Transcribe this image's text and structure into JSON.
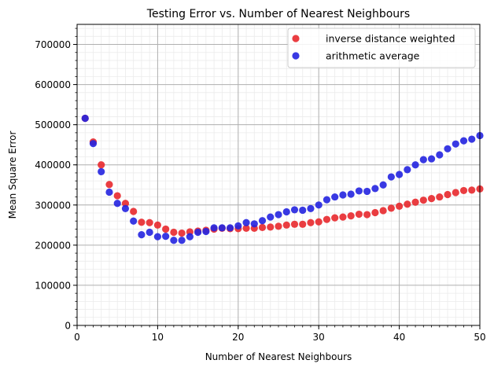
{
  "chart_data": {
    "type": "scatter",
    "title": "Testing Error vs. Number of Nearest Neighbours",
    "xlabel": "Number of Nearest Neighbours",
    "ylabel": "Mean Square Error",
    "xlim": [
      0,
      50
    ],
    "ylim": [
      0,
      750000
    ],
    "x_major_ticks": [
      0,
      10,
      20,
      30,
      40,
      50
    ],
    "y_major_ticks": [
      0,
      100000,
      200000,
      300000,
      400000,
      500000,
      600000,
      700000
    ],
    "x_tick_labels": [
      "0",
      "10",
      "20",
      "30",
      "40",
      "50"
    ],
    "y_tick_labels": [
      "0",
      "100000",
      "200000",
      "300000",
      "400000",
      "500000",
      "600000",
      "700000"
    ],
    "grid": "on (major and minor)",
    "legend_position": "top-right",
    "x": [
      1,
      2,
      3,
      4,
      5,
      6,
      7,
      8,
      9,
      10,
      11,
      12,
      13,
      14,
      15,
      16,
      17,
      18,
      19,
      20,
      21,
      22,
      23,
      24,
      25,
      26,
      27,
      28,
      29,
      30,
      31,
      32,
      33,
      34,
      35,
      36,
      37,
      38,
      39,
      40,
      41,
      42,
      43,
      44,
      45,
      46,
      47,
      48,
      49,
      50
    ],
    "series": [
      {
        "name": "inverse distance weighted",
        "color": "#e8282c",
        "values": [
          516000,
          457000,
          400000,
          351000,
          323000,
          304000,
          284000,
          257000,
          256000,
          250000,
          240000,
          232000,
          230000,
          233000,
          235000,
          237000,
          240000,
          242000,
          241000,
          241000,
          242000,
          242000,
          244000,
          245000,
          247000,
          250000,
          252000,
          252000,
          256000,
          258000,
          264000,
          268000,
          270000,
          273000,
          277000,
          276000,
          281000,
          286000,
          292000,
          297000,
          302000,
          307000,
          312000,
          316000,
          320000,
          326000,
          331000,
          336000,
          337000,
          340000
        ]
      },
      {
        "name": "arithmetic average",
        "color": "#2424e0",
        "values": [
          516000,
          453000,
          383000,
          332000,
          304000,
          291000,
          260000,
          226000,
          232000,
          221000,
          222000,
          212000,
          212000,
          221000,
          232000,
          234000,
          243000,
          243000,
          243000,
          248000,
          256000,
          253000,
          261000,
          270000,
          276000,
          283000,
          288000,
          287000,
          291000,
          300000,
          313000,
          320000,
          325000,
          327000,
          335000,
          334000,
          341000,
          350000,
          370000,
          376000,
          388000,
          400000,
          413000,
          415000,
          425000,
          440000,
          452000,
          460000,
          464000,
          473000
        ]
      }
    ]
  }
}
